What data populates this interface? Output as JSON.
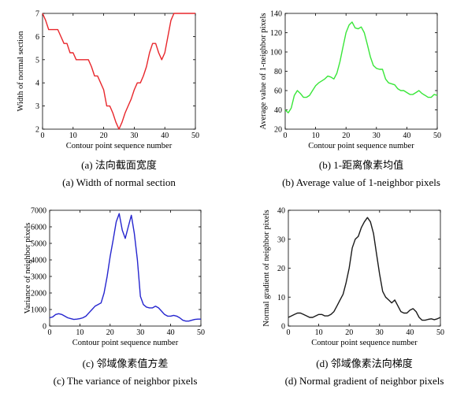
{
  "chart_data": [
    {
      "type": "line",
      "color": "#e8262b",
      "xlabel": "Contour point sequence number",
      "ylabel": "Width of normal section",
      "xlim": [
        0,
        50
      ],
      "ylim": [
        2,
        7
      ],
      "xticks": [
        0,
        10,
        20,
        30,
        40,
        50
      ],
      "yticks": [
        2,
        3,
        4,
        5,
        6,
        7
      ],
      "caption_cn": "(a)  法向截面宽度",
      "caption_en": "(a) Width of normal section",
      "x": [
        0,
        1,
        2,
        3,
        4,
        5,
        6,
        7,
        8,
        9,
        10,
        11,
        12,
        13,
        14,
        15,
        16,
        17,
        18,
        19,
        20,
        21,
        22,
        23,
        24,
        25,
        26,
        27,
        28,
        29,
        30,
        31,
        32,
        33,
        34,
        35,
        36,
        37,
        38,
        39,
        40,
        41,
        42,
        43,
        44,
        45,
        46,
        47,
        48,
        49,
        50
      ],
      "y": [
        7,
        6.7,
        6.3,
        6.3,
        6.3,
        6.3,
        6.0,
        5.7,
        5.7,
        5.3,
        5.3,
        5.0,
        5.0,
        5.0,
        5.0,
        5.0,
        4.7,
        4.3,
        4.3,
        4.0,
        3.7,
        3.0,
        3.0,
        2.7,
        2.3,
        2.0,
        2.3,
        2.7,
        3.0,
        3.3,
        3.7,
        4.0,
        4.0,
        4.3,
        4.7,
        5.3,
        5.7,
        5.7,
        5.3,
        5.0,
        5.3,
        6.0,
        6.7,
        7,
        7,
        7,
        7,
        7,
        7,
        7,
        7
      ]
    },
    {
      "type": "line",
      "color": "#39e639",
      "xlabel": "Contour point sequence number",
      "ylabel": "Average value of 1-neighbor pixels",
      "xlim": [
        0,
        50
      ],
      "ylim": [
        20,
        140
      ],
      "xticks": [
        0,
        10,
        20,
        30,
        40,
        50
      ],
      "yticks": [
        20,
        40,
        60,
        80,
        100,
        120,
        140
      ],
      "caption_cn": "(b) 1-距离像素均值",
      "caption_en": "(b) Average value of 1-neighbor pixels",
      "x": [
        0,
        1,
        2,
        3,
        4,
        5,
        6,
        7,
        8,
        9,
        10,
        11,
        12,
        13,
        14,
        15,
        16,
        17,
        18,
        19,
        20,
        21,
        22,
        23,
        24,
        25,
        26,
        27,
        28,
        29,
        30,
        31,
        32,
        33,
        34,
        35,
        36,
        37,
        38,
        39,
        40,
        41,
        42,
        43,
        44,
        45,
        46,
        47,
        48,
        49,
        50
      ],
      "y": [
        40,
        37,
        42,
        55,
        60,
        57,
        53,
        53,
        55,
        60,
        65,
        68,
        70,
        72,
        75,
        74,
        72,
        78,
        90,
        105,
        120,
        128,
        131,
        125,
        124,
        126,
        120,
        108,
        95,
        86,
        83,
        82,
        82,
        72,
        68,
        67,
        66,
        62,
        60,
        60,
        58,
        56,
        56,
        58,
        60,
        57,
        55,
        53,
        53,
        56,
        55
      ]
    },
    {
      "type": "line",
      "color": "#2525cf",
      "xlabel": "Contour point sequence number",
      "ylabel": "Variance of neighbor pixels",
      "xlim": [
        0,
        50
      ],
      "ylim": [
        0,
        7000
      ],
      "xticks": [
        0,
        10,
        20,
        30,
        40,
        50
      ],
      "yticks": [
        0,
        1000,
        2000,
        3000,
        4000,
        5000,
        6000,
        7000
      ],
      "caption_cn": "(c)  邻域像素值方差",
      "caption_en": "(c) The variance of neighbor pixels",
      "x": [
        0,
        1,
        2,
        3,
        4,
        5,
        6,
        7,
        8,
        9,
        10,
        11,
        12,
        13,
        14,
        15,
        16,
        17,
        18,
        19,
        20,
        21,
        22,
        23,
        24,
        25,
        26,
        27,
        28,
        29,
        30,
        31,
        32,
        33,
        34,
        35,
        36,
        37,
        38,
        39,
        40,
        41,
        42,
        43,
        44,
        45,
        46,
        47,
        48,
        49,
        50
      ],
      "y": [
        500,
        550,
        700,
        750,
        700,
        600,
        500,
        450,
        400,
        420,
        450,
        500,
        600,
        800,
        1000,
        1200,
        1300,
        1400,
        2000,
        3000,
        4200,
        5200,
        6300,
        6800,
        5800,
        5300,
        6000,
        6700,
        5600,
        4000,
        1800,
        1300,
        1150,
        1100,
        1100,
        1200,
        1100,
        900,
        700,
        600,
        600,
        650,
        600,
        500,
        350,
        300,
        300,
        350,
        400,
        420,
        420
      ]
    },
    {
      "type": "line",
      "color": "#1a1a1a",
      "xlabel": "Contour point sequence number",
      "ylabel": "Normal gradient of neighbor pixels",
      "xlim": [
        0,
        50
      ],
      "ylim": [
        0,
        40
      ],
      "xticks": [
        0,
        10,
        20,
        30,
        40,
        50
      ],
      "yticks": [
        0,
        10,
        20,
        30,
        40
      ],
      "caption_cn": "(d)  邻域像素法向梯度",
      "caption_en": "(d) Normal gradient of neighbor pixels",
      "x": [
        0,
        1,
        2,
        3,
        4,
        5,
        6,
        7,
        8,
        9,
        10,
        11,
        12,
        13,
        14,
        15,
        16,
        17,
        18,
        19,
        20,
        21,
        22,
        23,
        24,
        25,
        26,
        27,
        28,
        29,
        30,
        31,
        32,
        33,
        34,
        35,
        36,
        37,
        38,
        39,
        40,
        41,
        42,
        43,
        44,
        45,
        46,
        47,
        48,
        49,
        50
      ],
      "y": [
        3,
        3.5,
        4,
        4.5,
        4.5,
        4,
        3.5,
        3,
        3,
        3.5,
        4,
        4,
        3.5,
        3.5,
        4,
        5,
        7,
        9,
        11,
        15,
        20,
        27,
        30,
        31,
        34,
        36,
        37.5,
        36,
        32,
        25,
        18,
        12,
        10,
        9,
        8,
        9,
        7,
        5,
        4.5,
        4.5,
        5.5,
        6,
        5,
        3,
        2,
        2,
        2.3,
        2.5,
        2.2,
        2.5,
        3
      ]
    }
  ]
}
